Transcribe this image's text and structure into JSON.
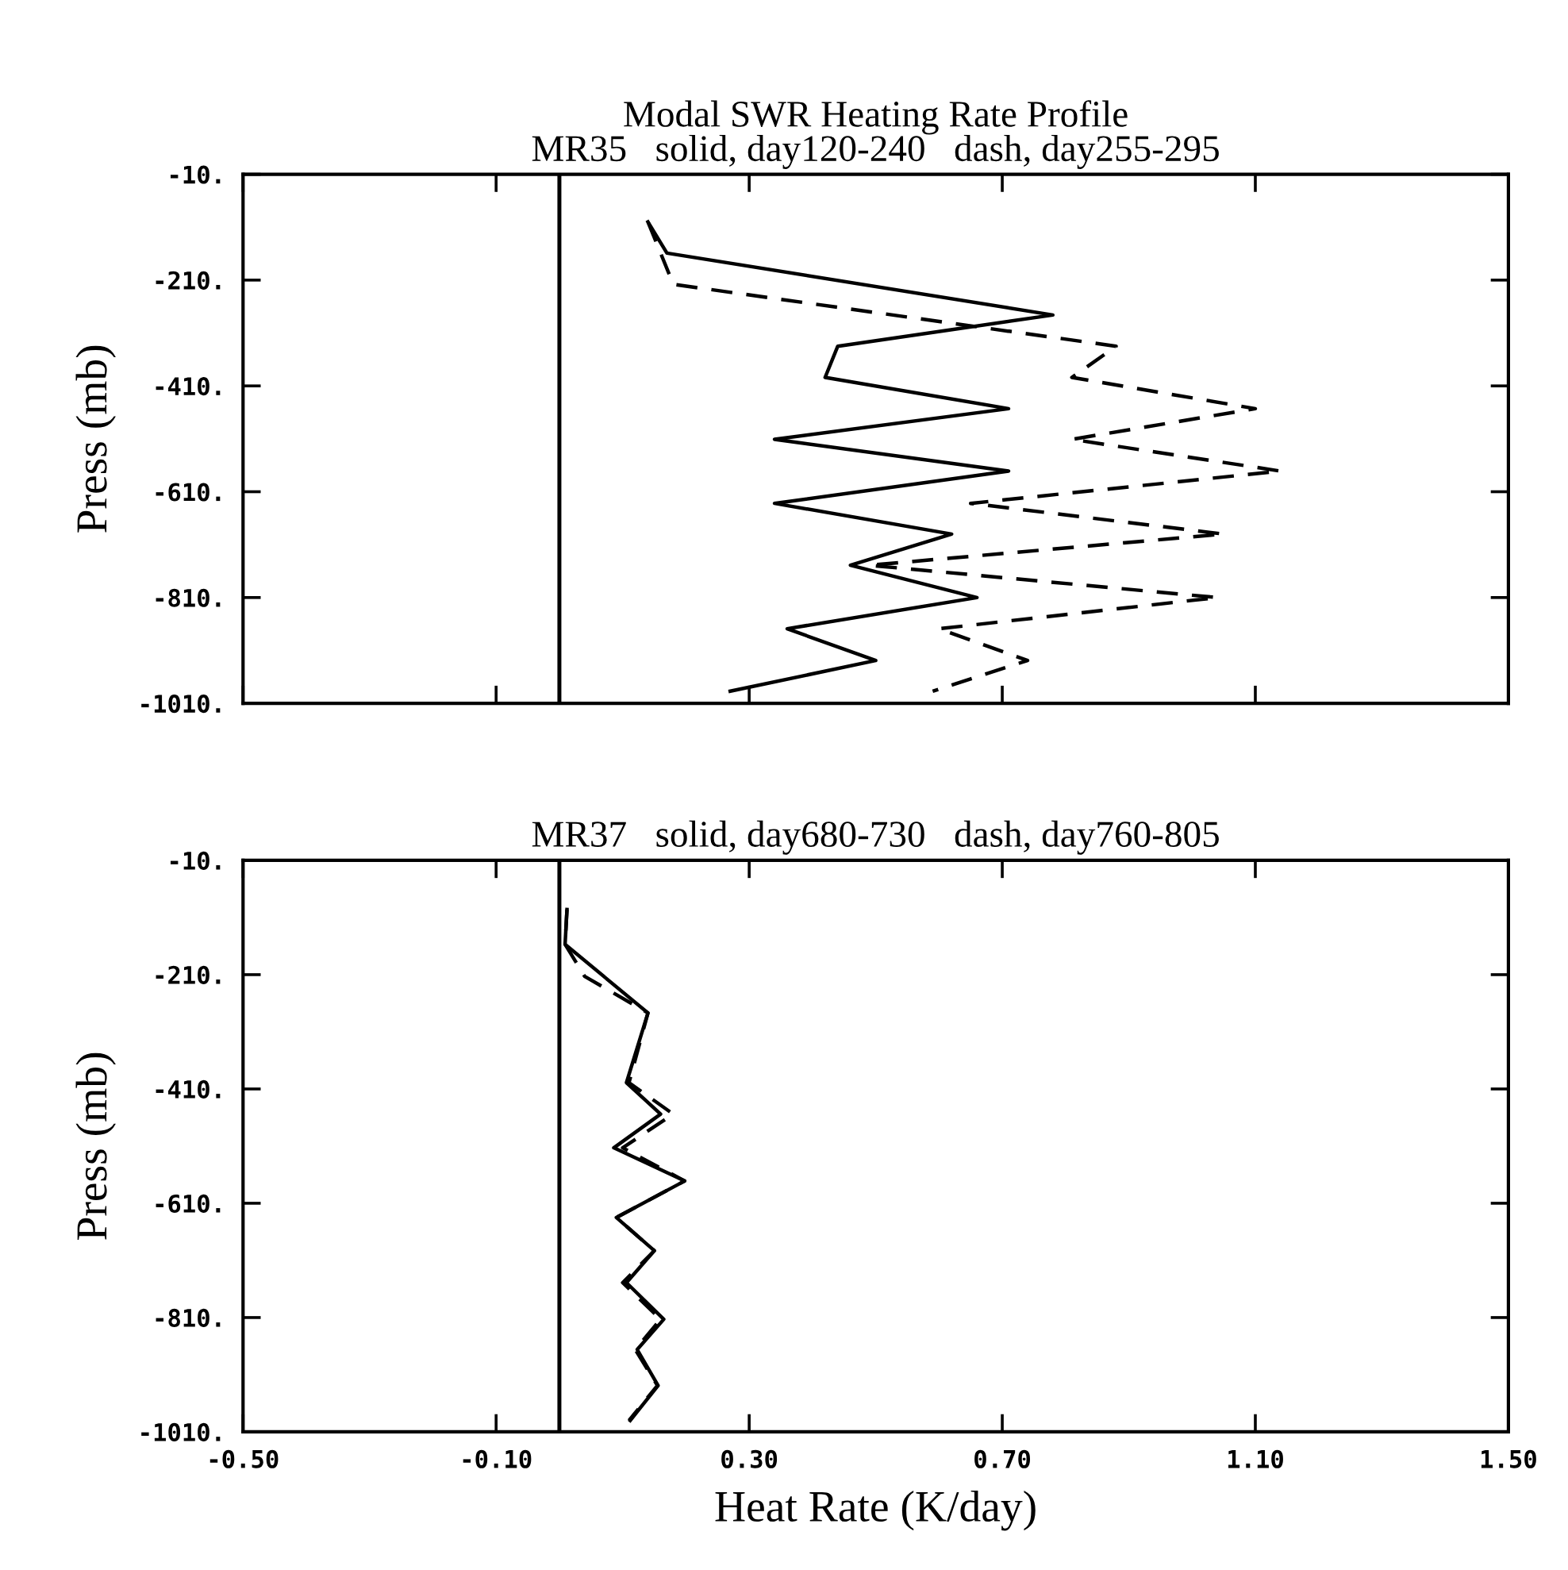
{
  "chart_data": [
    {
      "type": "line",
      "title": "Modal SWR Heating Rate Profile",
      "subtitle": "MR35   solid, day120-240   dash, day255-295",
      "ylabel": "Press (mb)",
      "series": [
        {
          "color": "#000000",
          "line_style": "solid",
          "x": [
            0.14,
            0.17,
            0.78,
            0.44,
            0.42,
            0.71,
            0.34,
            0.71,
            0.34,
            0.62,
            0.46,
            0.66,
            0.36,
            0.5,
            0.27
          ],
          "values": [
            -100,
            -159,
            -276,
            -335,
            -394,
            -453,
            -511,
            -571,
            -632,
            -690,
            -749,
            -810,
            -869,
            -929,
            -987
          ]
        },
        {
          "color": "#000000",
          "line_style": "dashed",
          "x": [
            0.14,
            0.18,
            0.88,
            0.81,
            1.1,
            0.81,
            1.14,
            0.65,
            1.05,
            0.49,
            1.04,
            0.6,
            0.74,
            0.59
          ],
          "values": [
            -100,
            -218,
            -335,
            -394,
            -453,
            -511,
            -571,
            -632,
            -690,
            -749,
            -810,
            -869,
            -929,
            -987
          ]
        }
      ],
      "xlim": [
        -0.5,
        1.5
      ],
      "xticks": [
        {
          "value": -0.5,
          "label": null
        },
        {
          "value": -0.1,
          "label": null
        },
        {
          "value": 0.3,
          "label": null
        },
        {
          "value": 0.7,
          "label": null
        },
        {
          "value": 1.1,
          "label": null
        },
        {
          "value": 1.5,
          "label": null
        }
      ],
      "ylim": [
        -1010,
        -10
      ],
      "yticks": [
        {
          "value": -10,
          "label": "-10."
        },
        {
          "value": -210,
          "label": "-210."
        },
        {
          "value": -410,
          "label": "-410."
        },
        {
          "value": -610,
          "label": "-610."
        },
        {
          "value": -810,
          "label": "-810."
        },
        {
          "value": -1010,
          "label": "-1010."
        }
      ],
      "tick_labels": "y",
      "ref_lines": [
        {
          "axis": "x",
          "value": 0,
          "color": "#000000",
          "line_style": "solid"
        }
      ],
      "grid": false,
      "legend": false
    },
    {
      "type": "line",
      "title": "MR37   solid, day680-730   dash, day760-805",
      "xlabel": "Heat Rate (K/day)",
      "ylabel": "Press (mb)",
      "series": [
        {
          "color": "#000000",
          "line_style": "solid",
          "x": [
            0.012,
            0.009,
            0.14,
            0.106,
            0.16,
            0.086,
            0.198,
            0.09,
            0.15,
            0.106,
            0.165,
            0.123,
            0.156,
            0.112
          ],
          "values": [
            -96,
            -157,
            -277,
            -399,
            -454,
            -513,
            -571,
            -635,
            -693,
            -749,
            -813,
            -866,
            -929,
            -990
          ]
        },
        {
          "color": "#000000",
          "line_style": "dashed",
          "x": [
            0.012,
            0.009,
            0.04,
            0.14,
            0.11,
            0.18,
            0.1,
            0.198,
            0.09,
            0.15,
            0.1,
            0.16,
            0.12,
            0.155,
            0.11
          ],
          "values": [
            -96,
            -157,
            -213,
            -277,
            -399,
            -454,
            -513,
            -571,
            -635,
            -693,
            -749,
            -813,
            -866,
            -929,
            -990
          ]
        }
      ],
      "xlim": [
        -0.5,
        1.5
      ],
      "xticks": [
        {
          "value": -0.5,
          "label": "-0.50"
        },
        {
          "value": -0.1,
          "label": "-0.10"
        },
        {
          "value": 0.3,
          "label": "0.30"
        },
        {
          "value": 0.7,
          "label": "0.70"
        },
        {
          "value": 1.1,
          "label": "1.10"
        },
        {
          "value": 1.5,
          "label": "1.50"
        }
      ],
      "ylim": [
        -1010,
        -10
      ],
      "yticks": [
        {
          "value": -10,
          "label": "-10."
        },
        {
          "value": -210,
          "label": "-210."
        },
        {
          "value": -410,
          "label": "-410."
        },
        {
          "value": -610,
          "label": "-610."
        },
        {
          "value": -810,
          "label": "-810."
        },
        {
          "value": -1010,
          "label": "-1010."
        }
      ],
      "ref_lines": [
        {
          "axis": "x",
          "value": 0,
          "color": "#000000",
          "line_style": "solid"
        }
      ],
      "grid": false,
      "legend": false
    }
  ]
}
